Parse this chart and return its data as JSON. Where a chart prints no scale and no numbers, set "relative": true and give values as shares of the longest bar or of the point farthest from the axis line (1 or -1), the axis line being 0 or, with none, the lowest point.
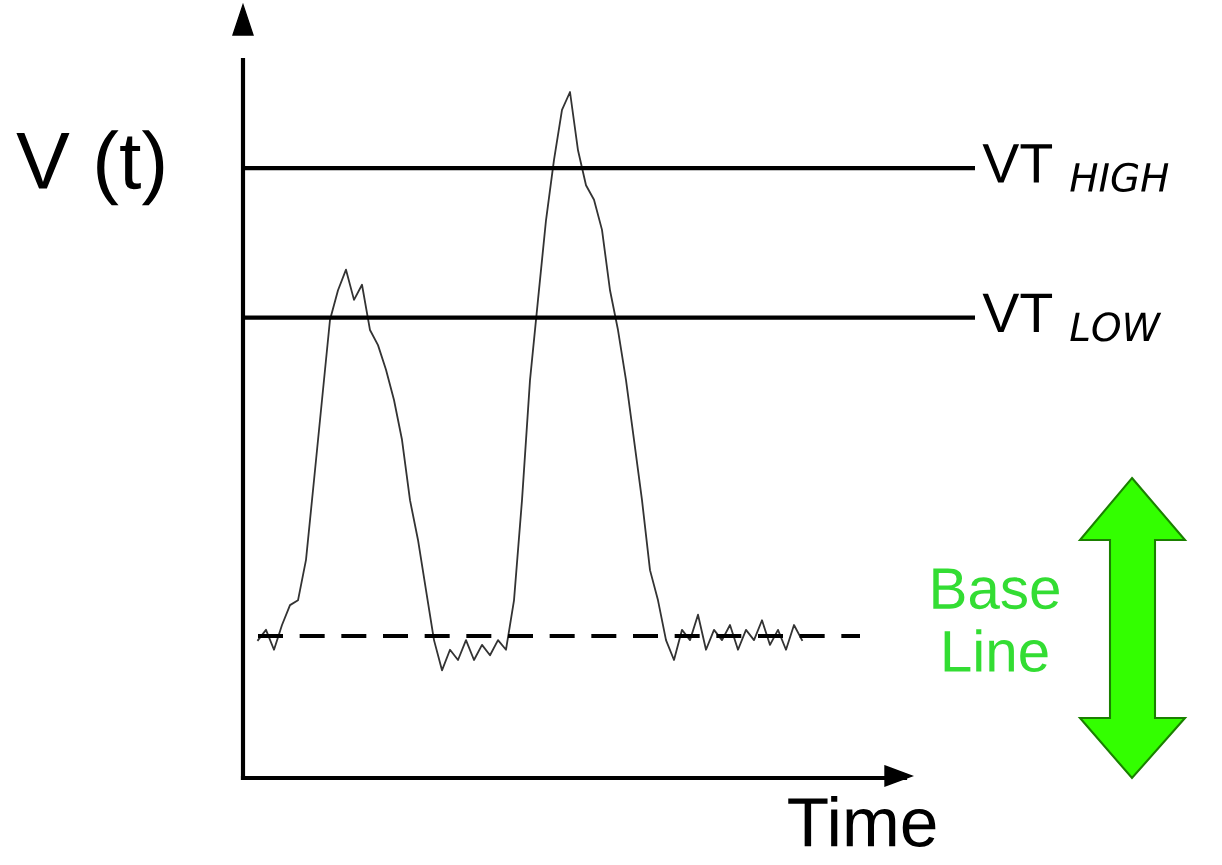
{
  "chart_data": {
    "type": "line",
    "relative": true,
    "ylabel": "V (t)",
    "xlabel": "Time",
    "categories": [
      null,
      null,
      null,
      null,
      null,
      null,
      null,
      null,
      null,
      null,
      null,
      null,
      null,
      null,
      null,
      null,
      null,
      null,
      null,
      null,
      null,
      null,
      null,
      null,
      null,
      null,
      null,
      null,
      null,
      null,
      null,
      null,
      null,
      null,
      null,
      null,
      null,
      null,
      null,
      null,
      null,
      null,
      null,
      null,
      null,
      null,
      null,
      null,
      null,
      null,
      null,
      null,
      null,
      null,
      null,
      null,
      null,
      null,
      null,
      null,
      null,
      null,
      null,
      null,
      null,
      null,
      null,
      null,
      null
    ],
    "series": [
      {
        "color": "#333333",
        "values": [
          0.201,
          0.216,
          0.187,
          0.223,
          0.252,
          0.259,
          0.318,
          0.434,
          0.551,
          0.668,
          0.711,
          0.741,
          0.697,
          0.719,
          0.653,
          0.631,
          0.595,
          0.551,
          0.493,
          0.405,
          0.347,
          0.274,
          0.201,
          0.157,
          0.187,
          0.172,
          0.201,
          0.172,
          0.194,
          0.179,
          0.201,
          0.187,
          0.259,
          0.405,
          0.58,
          0.697,
          0.813,
          0.901,
          0.974,
          1.0,
          0.915,
          0.864,
          0.843,
          0.799,
          0.711,
          0.653,
          0.58,
          0.493,
          0.405,
          0.303,
          0.259,
          0.201,
          0.172,
          0.216,
          0.201,
          0.238,
          0.187,
          0.216,
          0.201,
          0.223,
          0.187,
          0.216,
          0.201,
          0.23,
          0.194,
          0.216,
          0.187,
          0.223,
          0.201
        ]
      }
    ],
    "ref_lines": [
      {
        "axis": "y",
        "value": 0.889,
        "label": "VT $_{HIGH}$",
        "color": "#000000",
        "line_style": "solid"
      },
      {
        "axis": "y",
        "value": 0.671,
        "label": "VT $_{LOW}$",
        "color": "#000000",
        "line_style": "solid"
      },
      {
        "axis": "y",
        "value": 0.207,
        "color": "#000000",
        "line_style": "dashed"
      }
    ],
    "annotations": [
      "Base Line"
    ]
  }
}
